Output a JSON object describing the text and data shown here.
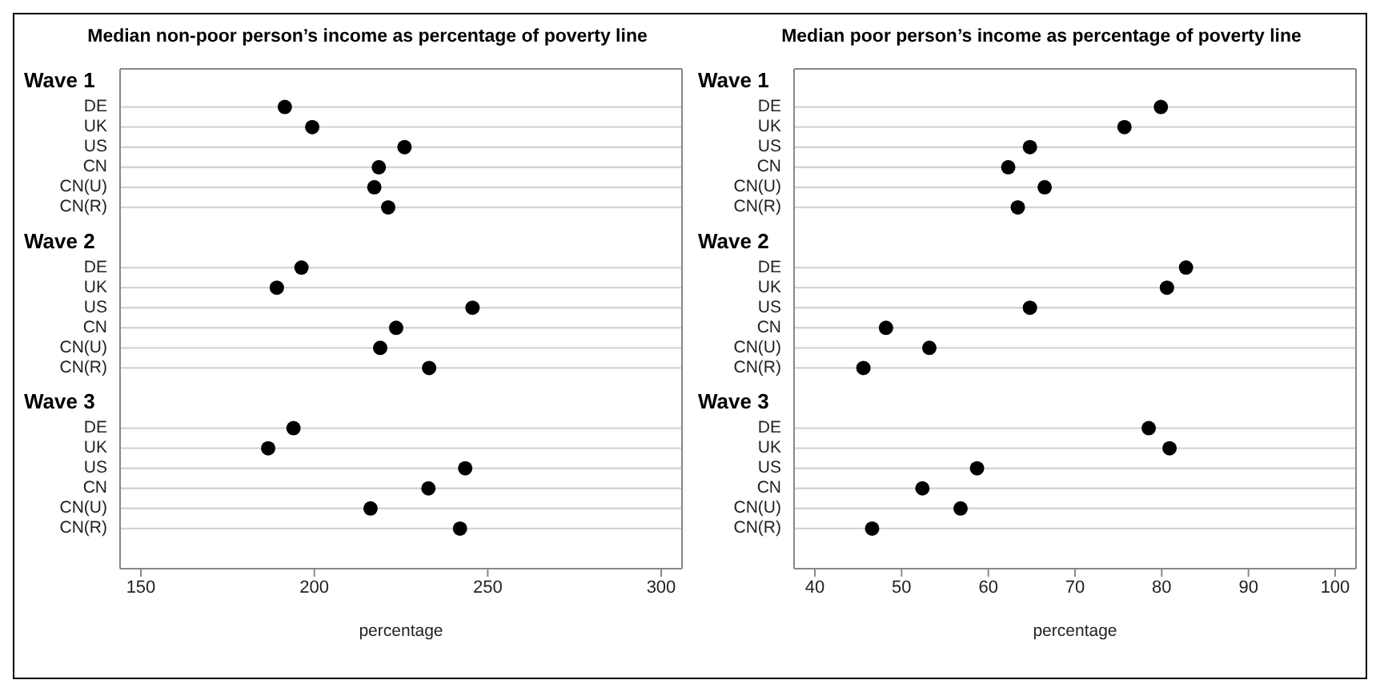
{
  "chart_data": [
    {
      "type": "scatter",
      "orientation": "horizontal",
      "title": "Median non-poor person’s income as percentage of poverty line",
      "xlabel": "percentage",
      "categories": [
        "Wave 1",
        "DE",
        "UK",
        "US",
        "CN",
        "CN(U)",
        "CN(R)",
        null,
        "Wave 2",
        "DE",
        "UK",
        "US",
        "CN",
        "CN(U)",
        "CN(R)",
        null,
        "Wave 3",
        "DE",
        "UK",
        "US",
        "CN",
        "CN(U)",
        "CN(R)"
      ],
      "values": [
        null,
        191.5,
        199.4,
        226,
        218.6,
        217.3,
        221.3,
        null,
        null,
        196.3,
        189.2,
        245.6,
        223.6,
        219,
        233.1,
        null,
        null,
        194,
        186.7,
        243.5,
        232.9,
        216.2,
        242
      ],
      "color": "#000000",
      "marker": "circle",
      "grid": "y",
      "xlim": [
        144,
        306
      ],
      "xticks": [
        150,
        200,
        250,
        300
      ]
    },
    {
      "type": "scatter",
      "orientation": "horizontal",
      "title": "Median poor person’s income as percentage of poverty line",
      "xlabel": "percentage",
      "categories": [
        "Wave 1",
        "DE",
        "UK",
        "US",
        "CN",
        "CN(U)",
        "CN(R)",
        null,
        "Wave 2",
        "DE",
        "UK",
        "US",
        "CN",
        "CN(U)",
        "CN(R)",
        null,
        "Wave 3",
        "DE",
        "UK",
        "US",
        "CN",
        "CN(U)",
        "CN(R)"
      ],
      "values": [
        null,
        79.9,
        75.7,
        64.8,
        62.3,
        66.5,
        63.4,
        null,
        null,
        82.8,
        80.6,
        64.8,
        48.2,
        53.2,
        45.6,
        null,
        null,
        78.5,
        80.9,
        58.7,
        52.4,
        56.8,
        46.6
      ],
      "color": "#000000",
      "marker": "circle",
      "grid": "y",
      "xlim": [
        37.6,
        102.4
      ],
      "xticks": [
        40,
        50,
        60,
        70,
        80,
        90,
        100
      ]
    }
  ]
}
